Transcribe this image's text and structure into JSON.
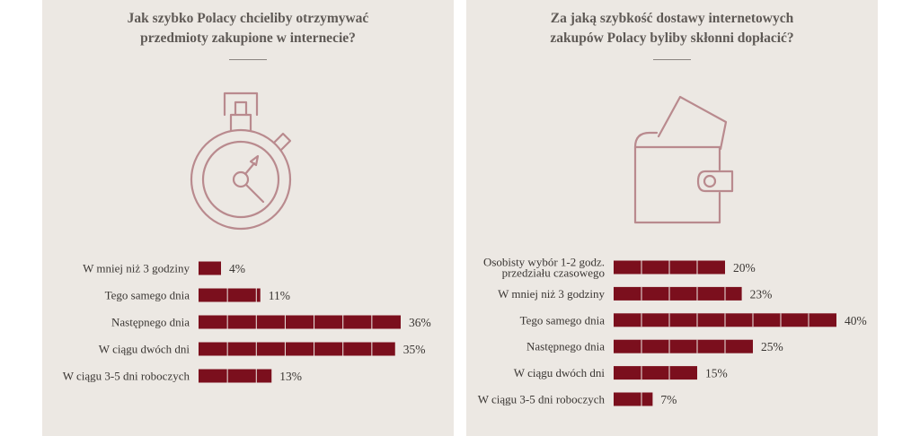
{
  "left_panel": {
    "title_lines": [
      "Jak szybko Polacy chcieliby otrzymywać",
      "przedmioty zakupione w internecie?"
    ]
  },
  "right_panel": {
    "title_lines": [
      "Za jaką szybkość dostawy internetowych",
      "zakupów Polacy byliby skłonni dopłacić?"
    ]
  },
  "colors": {
    "bar": "#7b0f1d",
    "background": "#ece8e3",
    "text": "#3a3633",
    "icon": "#b98a8e"
  },
  "icons": [
    "stopwatch-icon",
    "wallet-icon"
  ],
  "chart_data": [
    {
      "type": "bar",
      "orientation": "horizontal",
      "title": "Jak szybko Polacy chcieliby otrzymywać przedmioty zakupione w internecie?",
      "categories": [
        [
          "W mniej niż 3 godziny"
        ],
        [
          "Tego samego dnia"
        ],
        [
          "Następnego dnia"
        ],
        [
          "W ciągu dwóch dni"
        ],
        [
          "W ciągu 3-5 dni roboczych"
        ]
      ],
      "values": [
        4,
        11,
        36,
        35,
        13
      ],
      "value_labels": [
        "4%",
        "11%",
        "36%",
        "35%",
        "13%"
      ],
      "unit": "%",
      "xlim": [
        0,
        36
      ]
    },
    {
      "type": "bar",
      "orientation": "horizontal",
      "title": "Za jaką szybkość dostawy internetowych zakupów Polacy byliby skłonni dopłacić?",
      "categories": [
        [
          "Osobisty wybór 1-2 godz.",
          "przedziału czasowego"
        ],
        [
          "W mniej niż 3 godziny"
        ],
        [
          "Tego samego dnia"
        ],
        [
          "Następnego dnia"
        ],
        [
          "W ciągu dwóch dni"
        ],
        [
          "W ciągu 3-5 dni roboczych"
        ]
      ],
      "values": [
        20,
        23,
        40,
        25,
        15,
        7
      ],
      "value_labels": [
        "20%",
        "23%",
        "40%",
        "25%",
        "15%",
        "7%"
      ],
      "unit": "%",
      "xlim": [
        0,
        40
      ]
    }
  ]
}
